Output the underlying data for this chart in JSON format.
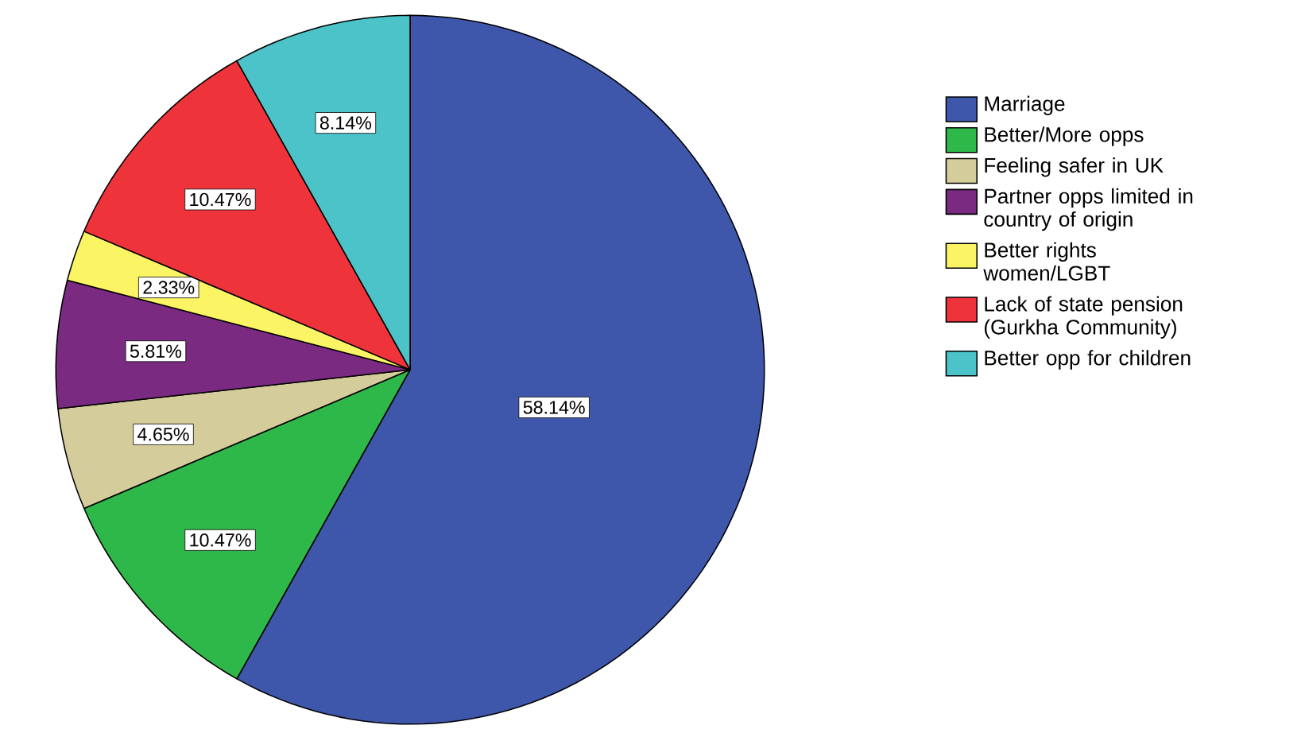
{
  "chart_data": {
    "type": "pie",
    "categories": [
      "Marriage",
      "Better/More opps",
      "Feeling safer in UK",
      "Partner opps limited in country of origin",
      "Better rights women/LGBT",
      "Lack of state pension (Gurkha Community)",
      "Better opp for children"
    ],
    "values": [
      58.14,
      10.47,
      4.65,
      5.81,
      2.33,
      10.47,
      8.14
    ],
    "value_labels": [
      "58.14%",
      "10.47%",
      "4.65%",
      "5.81%",
      "2.33%",
      "10.47%",
      "8.14%"
    ],
    "colors": [
      "#3f57ab",
      "#2fb84a",
      "#d4cc9a",
      "#7b2a82",
      "#fbf465",
      "#ef333a",
      "#4bc3c8"
    ],
    "legend": "right"
  }
}
